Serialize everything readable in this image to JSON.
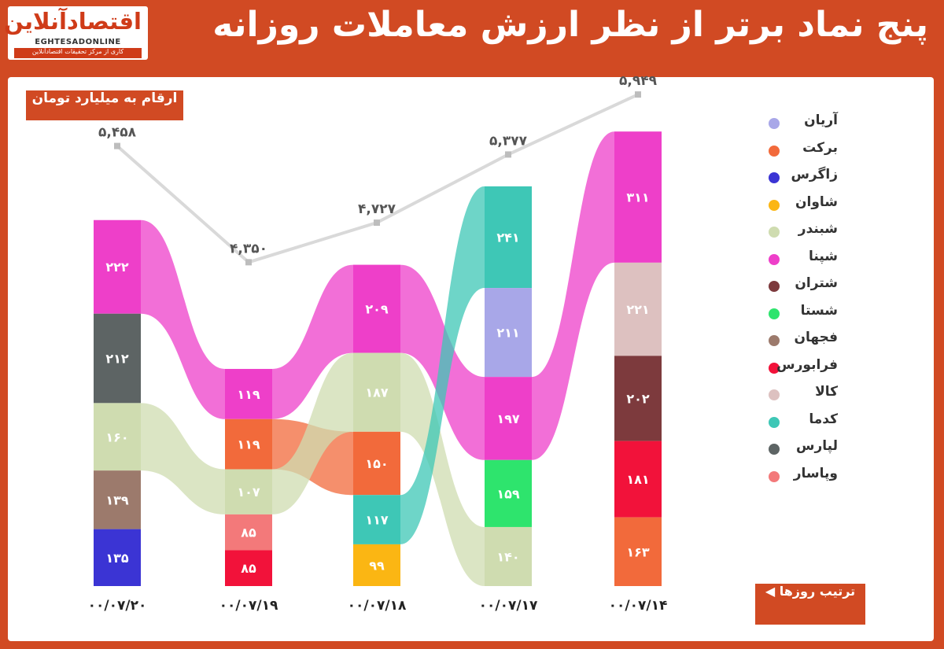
{
  "header": {
    "title": "پنج نماد برتر از نظر ارزش معاملات روزانه",
    "logo_fa": "اقتصادآنلاین",
    "logo_en": "EGHTESADONLINE",
    "logo_sub": "کاری از مرکز تحقیقات اقتصادآنلاین"
  },
  "notes": {
    "unit": "ارقام به میلیارد تومان",
    "order": "ترتیب روزها"
  },
  "legend": [
    {
      "label": "آریان",
      "color": "#a8a7e8"
    },
    {
      "label": "برکت",
      "color": "#f26a3b"
    },
    {
      "label": "زاگرس",
      "color": "#3b34d4"
    },
    {
      "label": "شاوان",
      "color": "#fbb613"
    },
    {
      "label": "شبندر",
      "color": "#cfdcb0"
    },
    {
      "label": "شپنا",
      "color": "#ee3fc9"
    },
    {
      "label": "شتران",
      "color": "#7d3a3d"
    },
    {
      "label": "شستا",
      "color": "#2ee46d"
    },
    {
      "label": "فجهان",
      "color": "#9c7a6c"
    },
    {
      "label": "فرابورس",
      "color": "#f2123a"
    },
    {
      "label": "کالا",
      "color": "#ddc1c0"
    },
    {
      "label": "کدما",
      "color": "#3ec7b6"
    },
    {
      "label": "لپارس",
      "color": "#5d6464"
    },
    {
      "label": "وپاسار",
      "color": "#f3797a"
    }
  ],
  "chart_data": {
    "type": "bar",
    "subtype": "stacked bar with ribbons and total line",
    "unit": "ارقام به میلیارد تومان",
    "categories": [
      "۰۰/۰۷/۲۰",
      "۰۰/۰۷/۱۹",
      "۰۰/۰۷/۱۸",
      "۰۰/۰۷/۱۷",
      "۰۰/۰۷/۱۴"
    ],
    "totals": [
      5458,
      4350,
      4727,
      5377,
      5949
    ],
    "total_labels": [
      "۵,۴۵۸",
      "۴,۳۵۰",
      "۴,۷۲۷",
      "۵,۳۷۷",
      "۵,۹۴۹"
    ],
    "stacks": [
      [
        {
          "name": "شپنا",
          "value": 222,
          "label": "۲۲۲"
        },
        {
          "name": "لپارس",
          "value": 212,
          "label": "۲۱۲"
        },
        {
          "name": "شبندر",
          "value": 160,
          "label": "۱۶۰"
        },
        {
          "name": "فجهان",
          "value": 139,
          "label": "۱۳۹"
        },
        {
          "name": "زاگرس",
          "value": 135,
          "label": "۱۳۵"
        }
      ],
      [
        {
          "name": "شپنا",
          "value": 119,
          "label": "۱۱۹"
        },
        {
          "name": "برکت",
          "value": 119,
          "label": "۱۱۹"
        },
        {
          "name": "شبندر",
          "value": 107,
          "label": "۱۰۷"
        },
        {
          "name": "وپاسار",
          "value": 85,
          "label": "۸۵"
        },
        {
          "name": "فرابورس",
          "value": 85,
          "label": "۸۵"
        }
      ],
      [
        {
          "name": "شپنا",
          "value": 209,
          "label": "۲۰۹"
        },
        {
          "name": "شبندر",
          "value": 187,
          "label": "۱۸۷"
        },
        {
          "name": "برکت",
          "value": 150,
          "label": "۱۵۰"
        },
        {
          "name": "کدما",
          "value": 117,
          "label": "۱۱۷"
        },
        {
          "name": "شاوان",
          "value": 99,
          "label": "۹۹"
        }
      ],
      [
        {
          "name": "کدما",
          "value": 241,
          "label": "۲۴۱"
        },
        {
          "name": "آریان",
          "value": 211,
          "label": "۲۱۱"
        },
        {
          "name": "شپنا",
          "value": 197,
          "label": "۱۹۷"
        },
        {
          "name": "شستا",
          "value": 159,
          "label": "۱۵۹"
        },
        {
          "name": "شبندر",
          "value": 140,
          "label": "۱۴۰"
        }
      ],
      [
        {
          "name": "شپنا",
          "value": 311,
          "label": "۳۱۱"
        },
        {
          "name": "کالا",
          "value": 221,
          "label": "۲۲۱"
        },
        {
          "name": "شتران",
          "value": 202,
          "label": "۲۰۲"
        },
        {
          "name": "فرابورس",
          "value": 181,
          "label": "۱۸۱"
        },
        {
          "name": "برکت",
          "value": 163,
          "label": "۱۶۳"
        }
      ]
    ],
    "legend_placement": "right",
    "grid": false
  }
}
